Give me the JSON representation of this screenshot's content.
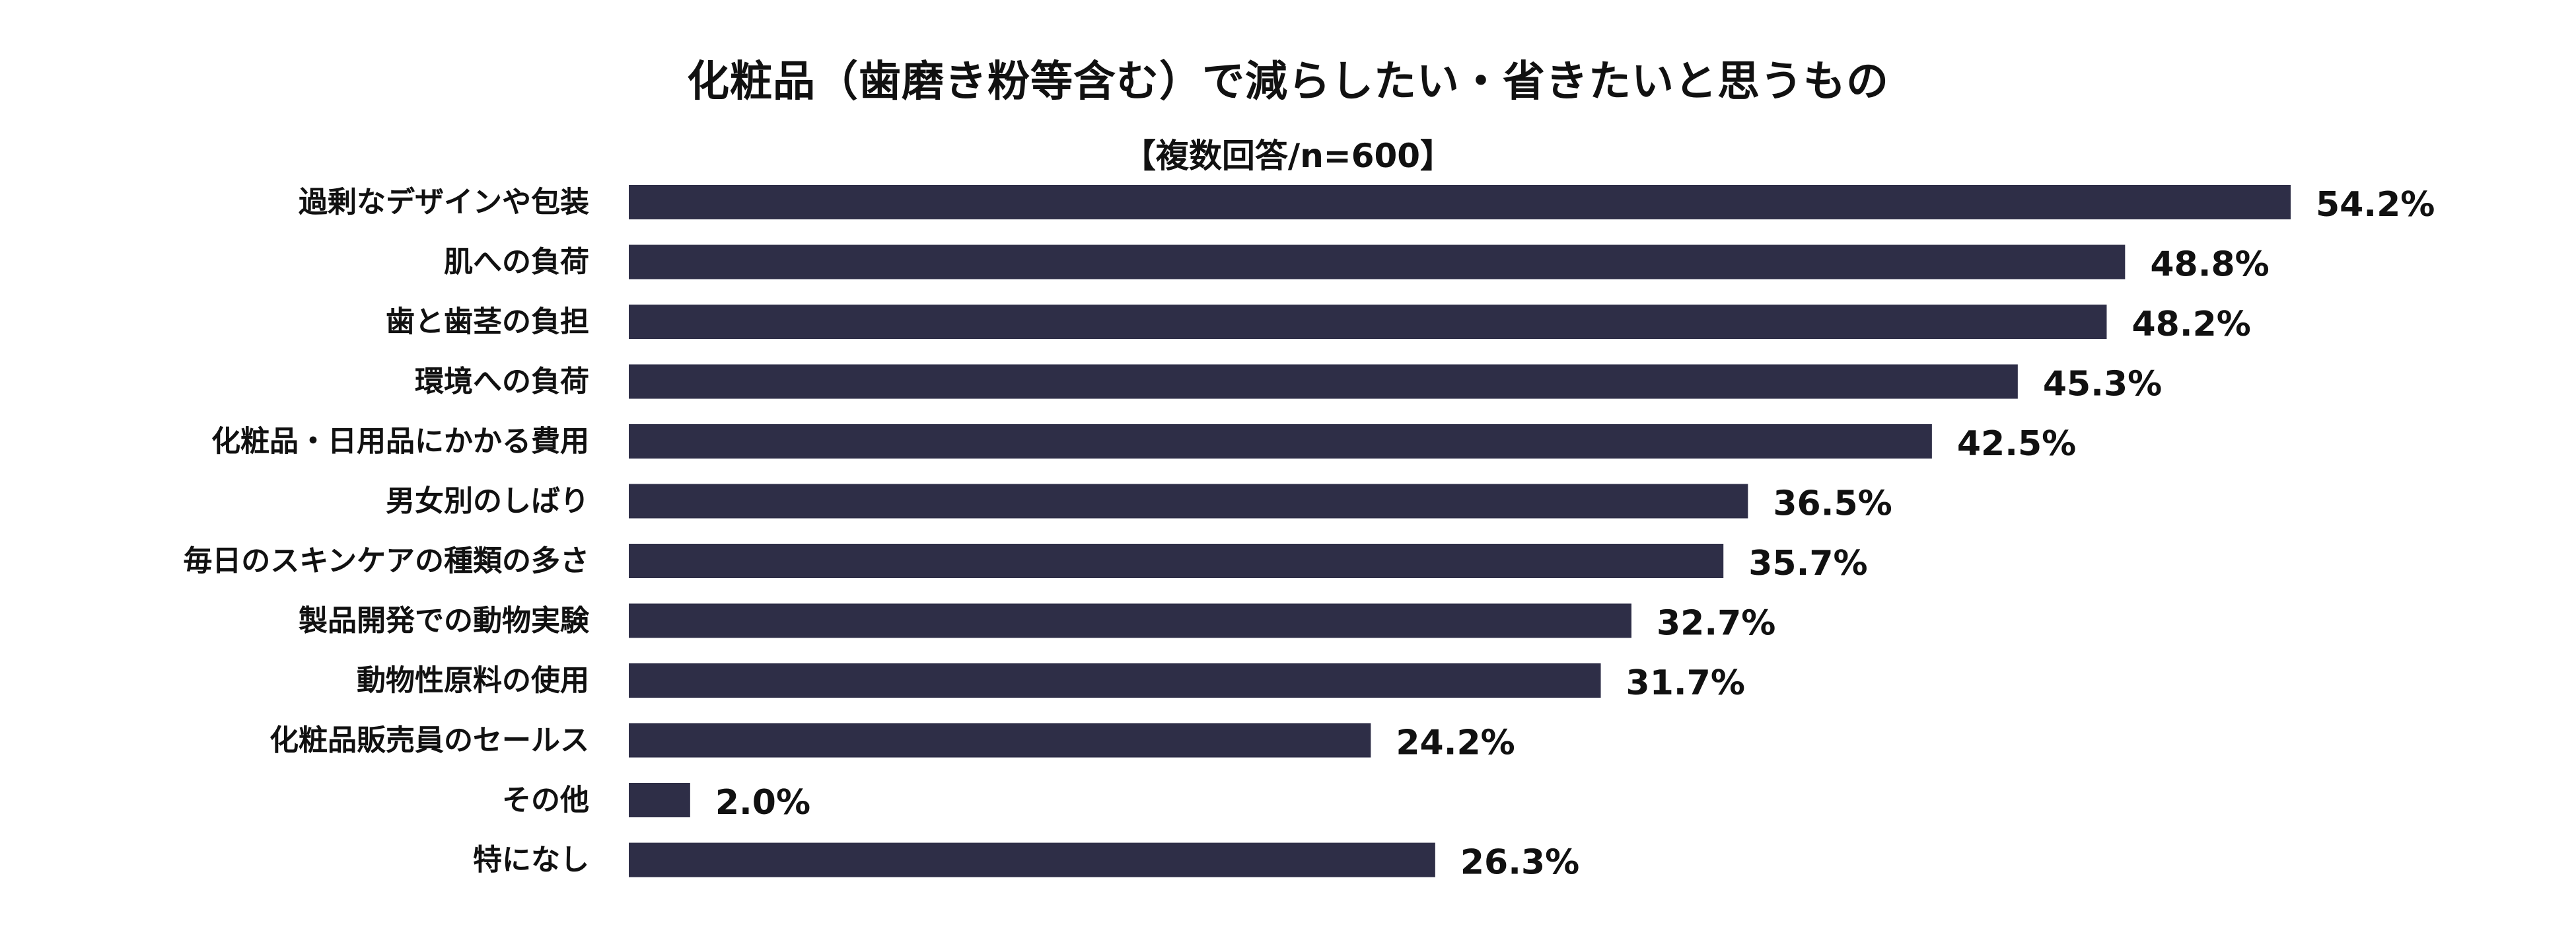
{
  "chart_data": {
    "type": "bar",
    "orientation": "horizontal",
    "title": "化粧品（歯磨き粉等含む）で減らしたい・省きたいと思うもの",
    "subtitle": "【複数回答/n=600】",
    "categories": [
      "過剰なデザインや包装",
      "肌への負荷",
      "歯と歯茎の負担",
      "環境への負荷",
      "化粧品・日用品にかかる費用",
      "男女別のしばり",
      "毎日のスキンケアの種類の多さ",
      "製品開発での動物実験",
      "動物性原料の使用",
      "化粧品販売員のセールス",
      "その他",
      "特になし"
    ],
    "values": [
      54.2,
      48.8,
      48.2,
      45.3,
      42.5,
      36.5,
      35.7,
      32.7,
      31.7,
      24.2,
      2.0,
      26.3
    ],
    "value_labels": [
      "54.2%",
      "48.8%",
      "48.2%",
      "45.3%",
      "42.5%",
      "36.5%",
      "35.7%",
      "32.7%",
      "31.7%",
      "24.2%",
      "2.0%",
      "26.3%"
    ],
    "xlim": [
      0,
      54.2
    ],
    "grid": false,
    "bar_color": "#2e2e47"
  }
}
